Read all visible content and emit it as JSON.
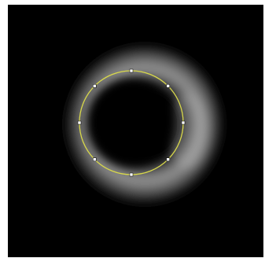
{
  "canvas": {
    "background_color": "#000000",
    "frame_color": "#ffffff"
  },
  "glow": {
    "color": "#ffffff",
    "inner_color": "#000000"
  },
  "selection": {
    "shape": "ellipse",
    "stroke_color": "#d8d84a",
    "handle_fill": "#ffffff",
    "handle_stroke": "#000000",
    "handle_count": 8
  }
}
